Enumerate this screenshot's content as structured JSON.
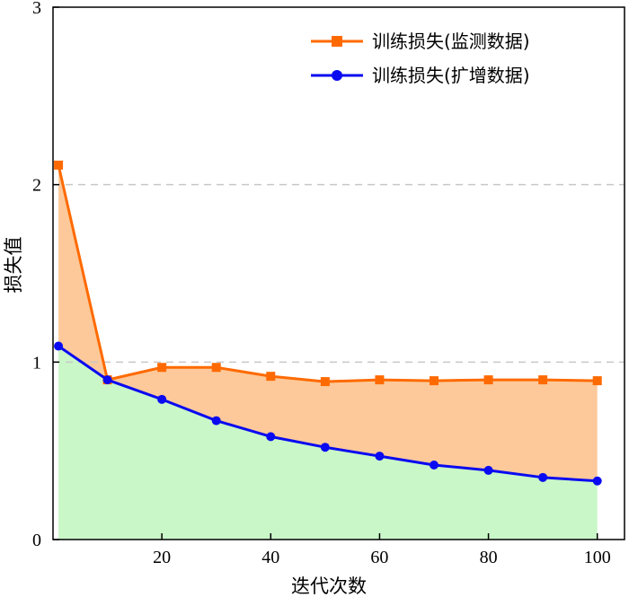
{
  "chart_data": {
    "type": "line",
    "xlabel": "迭代次数",
    "ylabel": "损失值",
    "xlim": [
      0,
      105
    ],
    "ylim": [
      0,
      3
    ],
    "xticks": [
      20,
      40,
      60,
      80,
      100
    ],
    "yticks": [
      0,
      1,
      2,
      3
    ],
    "grid_y": [
      1,
      2
    ],
    "legend_position": "top-right",
    "x": [
      1,
      10,
      20,
      30,
      40,
      50,
      60,
      70,
      80,
      90,
      100
    ],
    "series": [
      {
        "name": "训练损失(监测数据)",
        "color": "#ff6a00",
        "fill": "#fdc99a",
        "marker": "square",
        "values": [
          2.11,
          0.9,
          0.97,
          0.97,
          0.92,
          0.89,
          0.9,
          0.895,
          0.9,
          0.9,
          0.895
        ]
      },
      {
        "name": "训练损失(扩增数据)",
        "color": "#0a0af0",
        "fill": "#c9f7c8",
        "marker": "circle",
        "values": [
          1.09,
          0.9,
          0.79,
          0.67,
          0.58,
          0.52,
          0.47,
          0.42,
          0.39,
          0.35,
          0.33
        ]
      }
    ]
  }
}
